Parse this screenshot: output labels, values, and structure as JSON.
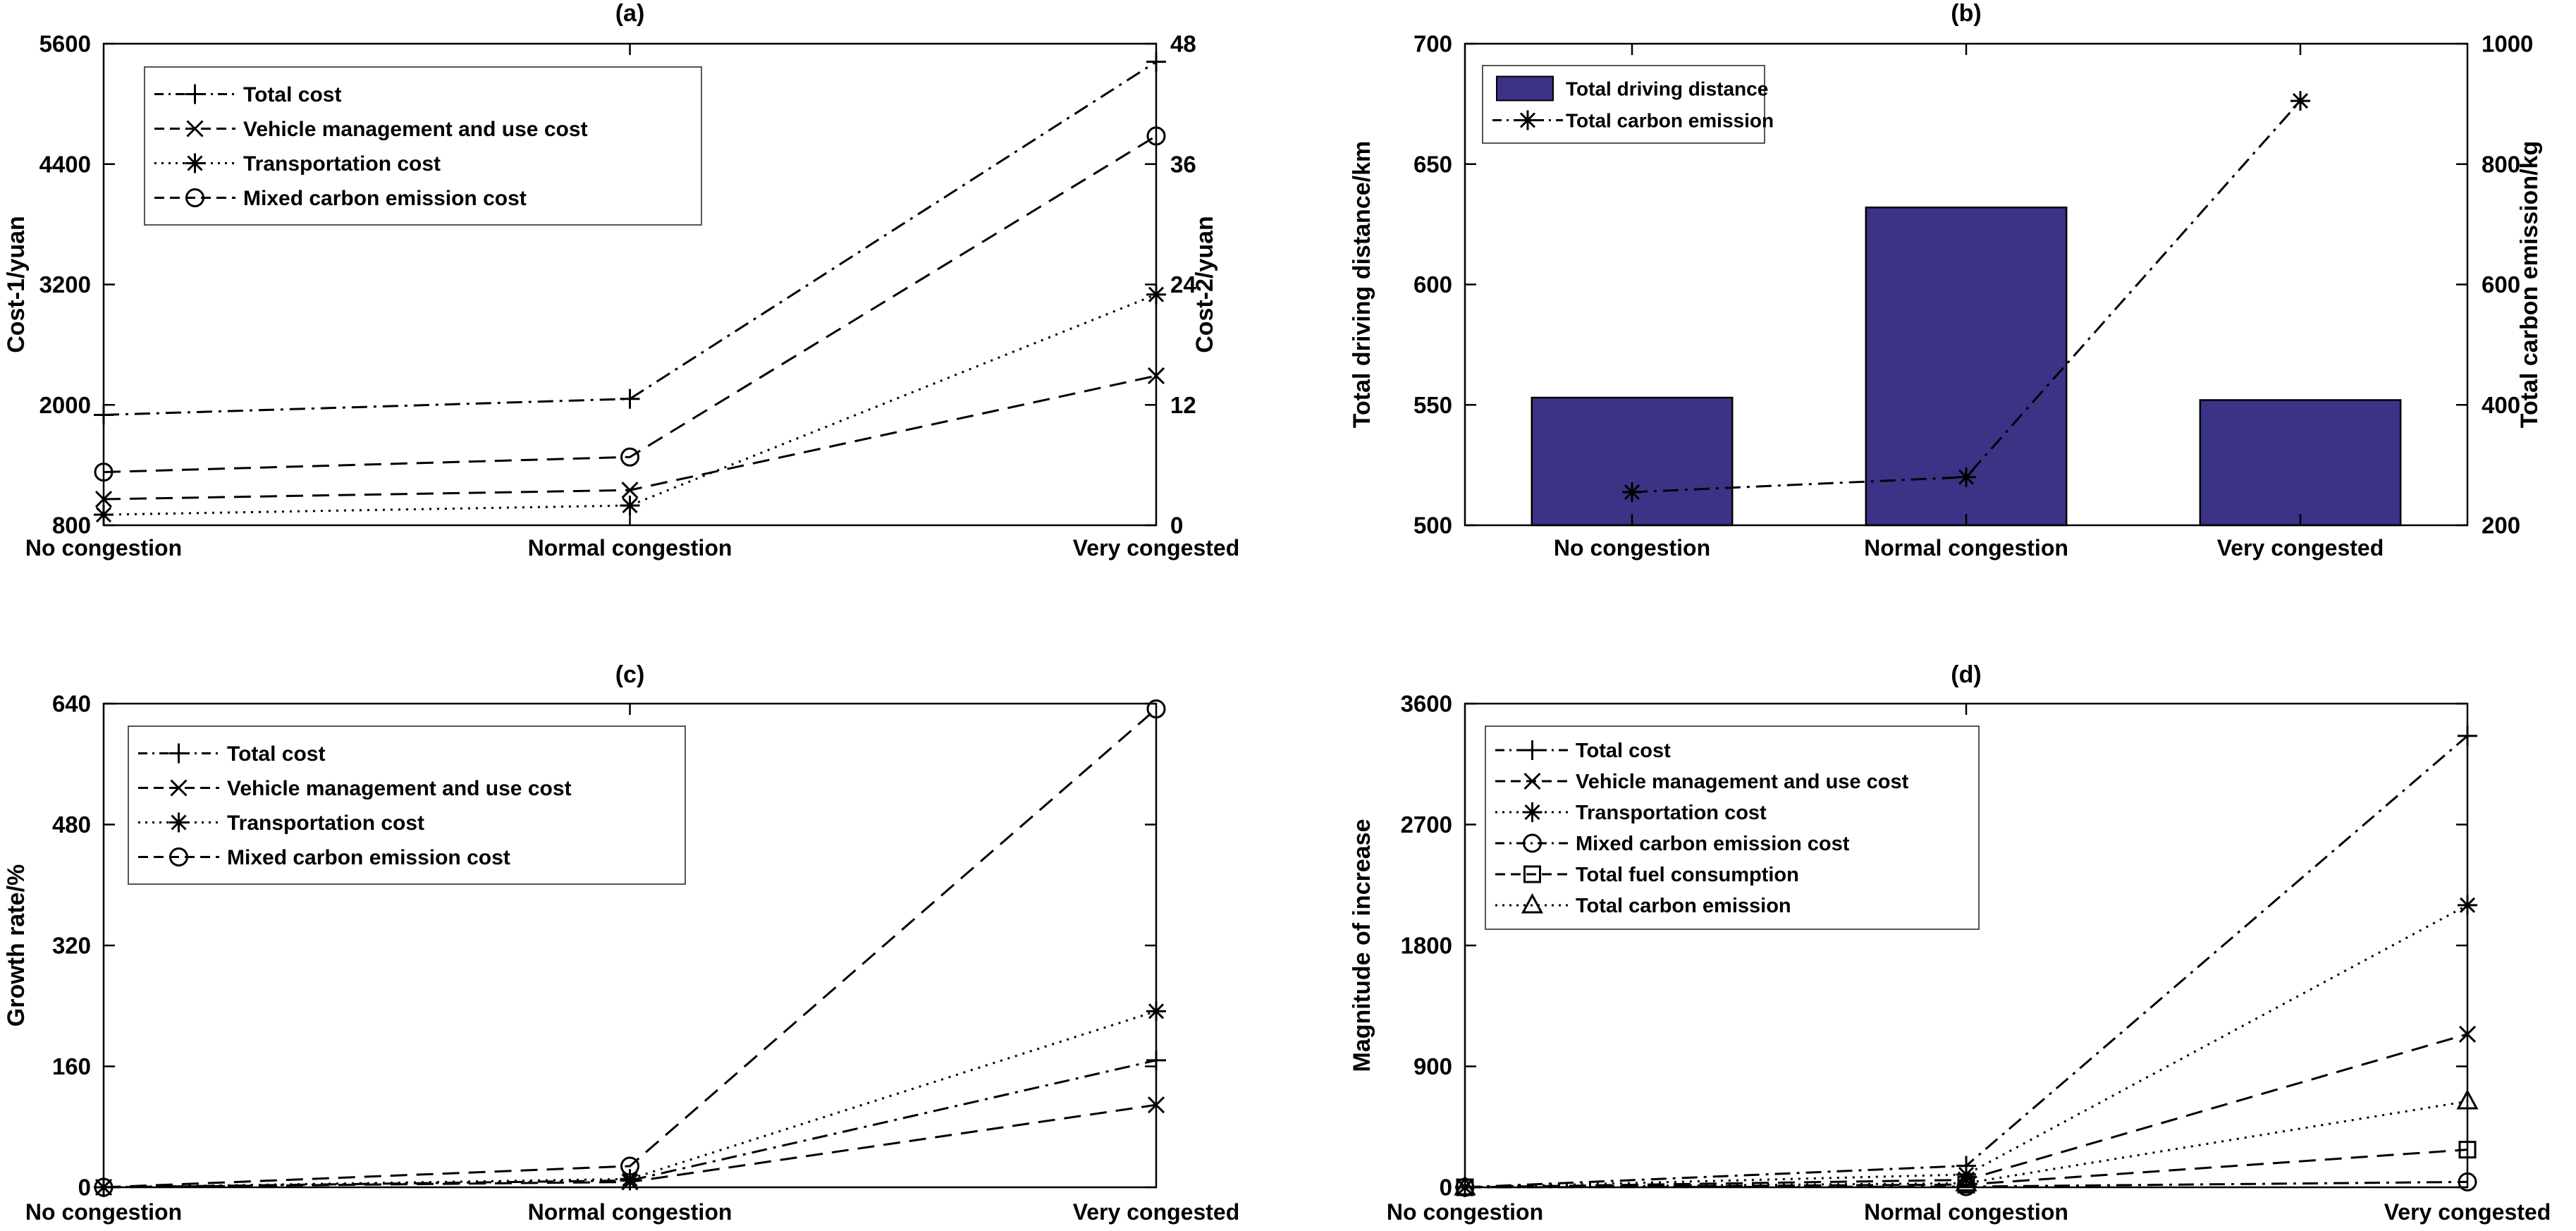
{
  "figure": {
    "background": "#ffffff",
    "line_color": "#000000",
    "bar_fill": "#3b3385",
    "bar_edge": "#000000"
  },
  "chart_data": [
    {
      "id": "a",
      "type": "line",
      "title": "(a)",
      "categories": [
        "No congestion",
        "Normal congestion",
        "Very congested"
      ],
      "ylabel_left": "Cost-1/yuan",
      "ylabel_right": "Cost-2/yuan",
      "ylim_left": [
        800,
        5600
      ],
      "yticks_left": [
        800,
        2000,
        3200,
        4400,
        5600
      ],
      "ylim_right": [
        0,
        48
      ],
      "yticks_right": [
        0,
        12,
        24,
        36,
        48
      ],
      "legend_position": "top-left",
      "series": [
        {
          "name": "Total cost",
          "axis": "left",
          "style": "dashdot",
          "marker": "plus",
          "values": [
            1900,
            2060,
            5420
          ]
        },
        {
          "name": "Vehicle management and use cost",
          "axis": "left",
          "style": "dashed",
          "marker": "x",
          "values": [
            1060,
            1150,
            2290
          ]
        },
        {
          "name": "Transportation cost",
          "axis": "left",
          "style": "dotted",
          "marker": "asterisk",
          "values": [
            905,
            997,
            3100
          ]
        },
        {
          "name": "Mixed carbon emission cost",
          "axis": "right",
          "style": "dashed",
          "marker": "circle",
          "values": [
            5.3,
            6.8,
            38.8
          ]
        }
      ]
    },
    {
      "id": "b",
      "type": "bar+line",
      "title": "(b)",
      "categories": [
        "No congestion",
        "Normal congestion",
        "Very congested"
      ],
      "ylabel_left": "Total driving distance/km",
      "ylabel_right": "Total carbon emission/kg",
      "ylim_left": [
        500,
        700
      ],
      "yticks_left": [
        500,
        550,
        600,
        650,
        700
      ],
      "ylim_right": [
        200,
        1000
      ],
      "yticks_right": [
        200,
        400,
        600,
        800,
        1000
      ],
      "legend_position": "top-left",
      "series": [
        {
          "name": "Total driving distance",
          "axis": "left",
          "style": "bar",
          "marker": "swatch",
          "values": [
            553,
            632,
            552
          ]
        },
        {
          "name": "Total carbon emission",
          "axis": "right",
          "style": "dashdot",
          "marker": "asterisk",
          "values": [
            255,
            280,
            905
          ]
        }
      ]
    },
    {
      "id": "c",
      "type": "line",
      "title": "(c)",
      "categories": [
        "No congestion",
        "Normal congestion",
        "Very congested"
      ],
      "ylabel_left": "Growth rate/%",
      "ylim_left": [
        0,
        640
      ],
      "yticks_left": [
        0,
        160,
        320,
        480,
        640
      ],
      "legend_position": "top-left",
      "series": [
        {
          "name": "Total cost",
          "axis": "left",
          "style": "dashdot",
          "marker": "plus",
          "values": [
            0,
            9,
            168
          ]
        },
        {
          "name": "Vehicle management and use cost",
          "axis": "left",
          "style": "dashed",
          "marker": "x",
          "values": [
            0,
            7,
            109
          ]
        },
        {
          "name": "Transportation cost",
          "axis": "left",
          "style": "dotted",
          "marker": "asterisk",
          "values": [
            0,
            11,
            233
          ]
        },
        {
          "name": "Mixed carbon emission cost",
          "axis": "left",
          "style": "dashed",
          "marker": "circle",
          "values": [
            0,
            28,
            633
          ]
        }
      ]
    },
    {
      "id": "d",
      "type": "line",
      "title": "(d)",
      "categories": [
        "No congestion",
        "Normal congestion",
        "Very congested"
      ],
      "ylabel_left": "Magnitude of increase",
      "ylim_left": [
        0,
        3600
      ],
      "yticks_left": [
        0,
        900,
        1800,
        2700,
        3600
      ],
      "legend_position": "top-left",
      "series": [
        {
          "name": "Total cost",
          "axis": "left",
          "style": "dashdot",
          "marker": "plus",
          "values": [
            0,
            160,
            3360
          ]
        },
        {
          "name": "Vehicle management and use cost",
          "axis": "left",
          "style": "dashed",
          "marker": "x",
          "values": [
            0,
            55,
            1140
          ]
        },
        {
          "name": "Transportation cost",
          "axis": "left",
          "style": "dotted",
          "marker": "asterisk",
          "values": [
            0,
            95,
            2100
          ]
        },
        {
          "name": "Mixed carbon emission cost",
          "axis": "left",
          "style": "dashdot",
          "marker": "circle",
          "values": [
            0,
            5,
            40
          ]
        },
        {
          "name": "Total fuel consumption",
          "axis": "left",
          "style": "dashed",
          "marker": "square",
          "values": [
            0,
            20,
            280
          ]
        },
        {
          "name": "Total carbon emission",
          "axis": "left",
          "style": "dotted",
          "marker": "triangle",
          "values": [
            0,
            30,
            640
          ]
        }
      ]
    }
  ]
}
